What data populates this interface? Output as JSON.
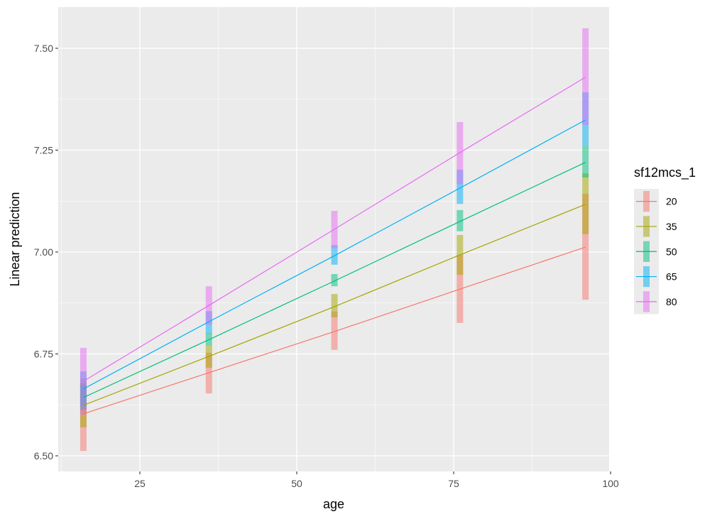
{
  "chart_data": {
    "type": "line",
    "title": "",
    "xlabel": "age",
    "ylabel": "Linear prediction",
    "xlim": [
      12.2,
      100
    ],
    "ylim": [
      6.462,
      7.601
    ],
    "x_ticks": [
      25,
      50,
      75,
      100
    ],
    "x_tick_labels": [
      "25",
      "50",
      "75",
      "100"
    ],
    "y_ticks": [
      6.5,
      6.75,
      7.0,
      7.25,
      7.5
    ],
    "y_tick_labels": [
      "6.50",
      "6.75",
      "7.00",
      "7.25",
      "7.50"
    ],
    "x_minor": [
      12.5,
      37.5,
      62.5,
      87.5
    ],
    "y_minor": [
      6.625,
      6.875,
      7.125,
      7.375
    ],
    "grid": true,
    "background": "#EBEBEB",
    "legend": {
      "title": "sf12mcs_1",
      "position": "right",
      "entries": [
        "20",
        "35",
        "50",
        "65",
        "80"
      ]
    },
    "x": [
      16,
      36,
      56,
      76,
      96
    ],
    "series": [
      {
        "name": "20",
        "color": "#F8766D",
        "values": [
          6.603,
          6.704,
          6.805,
          6.909,
          7.012
        ],
        "ci_low": [
          6.512,
          6.653,
          6.76,
          6.826,
          6.883
        ],
        "ci_high": [
          6.69,
          6.753,
          6.854,
          6.993,
          7.143
        ]
      },
      {
        "name": "35",
        "color": "#A3A500",
        "values": [
          6.624,
          6.744,
          6.866,
          6.993,
          7.117
        ],
        "ci_low": [
          6.57,
          6.716,
          6.84,
          6.944,
          7.044
        ],
        "ci_high": [
          6.678,
          6.77,
          6.897,
          7.042,
          7.193
        ]
      },
      {
        "name": "50",
        "color": "#00BF7D",
        "values": [
          6.643,
          6.785,
          6.929,
          7.075,
          7.22
        ],
        "ci_low": [
          6.613,
          6.77,
          6.916,
          7.051,
          7.183
        ],
        "ci_high": [
          6.673,
          6.801,
          6.946,
          7.103,
          7.261
        ]
      },
      {
        "name": "65",
        "color": "#00B0F6",
        "values": [
          6.664,
          6.829,
          6.991,
          7.157,
          7.324
        ],
        "ci_low": [
          6.621,
          6.8,
          6.969,
          7.118,
          7.261
        ],
        "ci_high": [
          6.707,
          6.855,
          7.017,
          7.202,
          7.392
        ]
      },
      {
        "name": "80",
        "color": "#E76BF3",
        "values": [
          6.683,
          6.869,
          7.056,
          7.244,
          7.429
        ],
        "ci_low": [
          6.601,
          6.822,
          7.01,
          7.166,
          7.312
        ],
        "ci_high": [
          6.765,
          6.916,
          7.101,
          7.319,
          7.549
        ]
      }
    ]
  }
}
